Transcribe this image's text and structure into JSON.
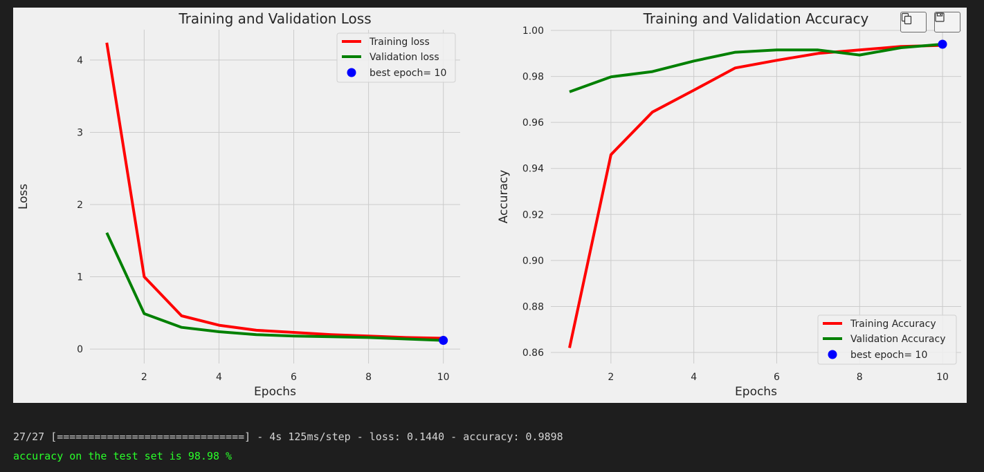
{
  "chart_data": [
    {
      "type": "line",
      "title": "Training and Validation Loss",
      "xlabel": "Epochs",
      "ylabel": "Loss",
      "x": [
        1,
        2,
        3,
        4,
        5,
        6,
        7,
        8,
        9,
        10
      ],
      "xlim": [
        0.55,
        10.45
      ],
      "ylim": [
        -0.2,
        4.42
      ],
      "xticks": [
        2,
        4,
        6,
        8,
        10
      ],
      "yticks": [
        0,
        1,
        2,
        3,
        4
      ],
      "ytick_labels": [
        "0",
        "1",
        "2",
        "3",
        "4"
      ],
      "grid": true,
      "legend_position": "upper right",
      "series": [
        {
          "name": "Training loss",
          "color": "#ff0000",
          "values": [
            4.24,
            1.0,
            0.46,
            0.33,
            0.26,
            0.23,
            0.2,
            0.18,
            0.16,
            0.15
          ]
        },
        {
          "name": "Validation loss",
          "color": "#008000",
          "values": [
            1.61,
            0.49,
            0.3,
            0.24,
            0.2,
            0.18,
            0.17,
            0.16,
            0.14,
            0.12
          ]
        }
      ],
      "best_point": {
        "label": "best epoch= 10",
        "x": 10,
        "y": 0.12,
        "color": "#0000ff"
      }
    },
    {
      "type": "line",
      "title": "Training and Validation Accuracy",
      "xlabel": "Epochs",
      "ylabel": "Accuracy",
      "x": [
        1,
        2,
        3,
        4,
        5,
        6,
        7,
        8,
        9,
        10
      ],
      "xlim": [
        0.55,
        10.45
      ],
      "ylim": [
        0.8552,
        1.0003
      ],
      "xticks": [
        2,
        4,
        6,
        8,
        10
      ],
      "yticks": [
        0.86,
        0.88,
        0.9,
        0.92,
        0.94,
        0.96,
        0.98,
        1.0
      ],
      "ytick_labels": [
        "0.86",
        "0.88",
        "0.90",
        "0.92",
        "0.94",
        "0.96",
        "0.98",
        "1.00"
      ],
      "grid": true,
      "legend_position": "lower right",
      "series": [
        {
          "name": "Training Accuracy",
          "color": "#ff0000",
          "values": [
            0.862,
            0.946,
            0.9645,
            0.974,
            0.9837,
            0.987,
            0.99,
            0.9915,
            0.993,
            0.9935
          ]
        },
        {
          "name": "Validation Accuracy",
          "color": "#008000",
          "values": [
            0.9733,
            0.9798,
            0.9821,
            0.9867,
            0.9905,
            0.9915,
            0.9915,
            0.9893,
            0.9925,
            0.994
          ]
        }
      ],
      "best_point": {
        "label": "best epoch= 10",
        "x": 10,
        "y": 0.994,
        "color": "#0000ff"
      }
    }
  ],
  "toolbar": {
    "copy_icon": "copy-icon",
    "save_icon": "save-icon"
  },
  "console": {
    "log_line": "27/27 [==============================] - 4s 125ms/step - loss: 0.1440 - accuracy: 0.9898",
    "result_line": "accuracy on the test set is 98.98 %"
  }
}
